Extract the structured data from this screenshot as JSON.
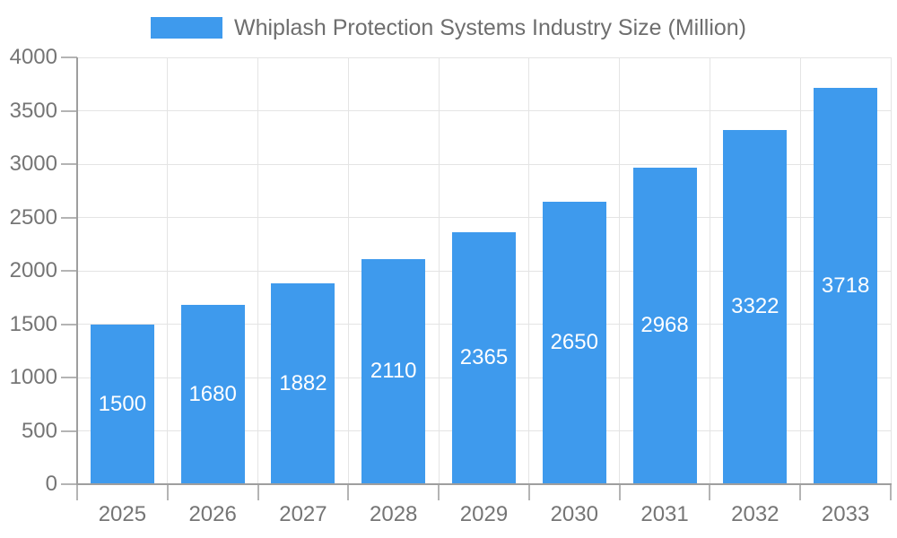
{
  "legend": {
    "label": "Whiplash Protection Systems Industry Size (Million)"
  },
  "chart_data": {
    "type": "bar",
    "title": "Whiplash Protection Systems Industry Size (Million)",
    "categories": [
      "2025",
      "2026",
      "2027",
      "2028",
      "2029",
      "2030",
      "2031",
      "2032",
      "2033"
    ],
    "values": [
      1500,
      1680,
      1882,
      2110,
      2365,
      2650,
      2968,
      3322,
      3718
    ],
    "series": [
      {
        "name": "Whiplash Protection Systems Industry Size (Million)",
        "values": [
          1500,
          1680,
          1882,
          2110,
          2365,
          2650,
          2968,
          3322,
          3718
        ]
      }
    ],
    "xlabel": "",
    "ylabel": "",
    "ylim": [
      0,
      4000
    ],
    "yticks": [
      0,
      500,
      1000,
      1500,
      2000,
      2500,
      3000,
      3500,
      4000
    ],
    "grid": true,
    "legend_position": "top",
    "value_label_position": "inside-center",
    "colors": {
      "bar": "#3E9AED",
      "bar_label": "#FFFFFF",
      "axis_text": "#757575",
      "title_text": "#6E6E6E",
      "gridline": "#E4E4E4",
      "axis_line": "#9E9E9E",
      "tick": "#B4B4B4",
      "background": "#FFFFFF"
    }
  }
}
